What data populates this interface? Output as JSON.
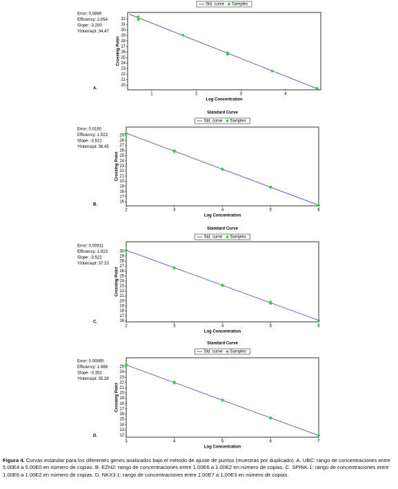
{
  "chart_data": [
    {
      "type": "line",
      "panel_label": "A.",
      "stats": [
        "Error: 0.0889",
        "Efficiency: 2.054",
        "Slope: -3.200",
        "YIntercept: 34.47"
      ],
      "x_label": "Log Concentration",
      "y_label": "Crossing Point",
      "series": [
        {
          "name": "Std. curve",
          "color": "#6060c8",
          "x": [
            0.5,
            4.75
          ],
          "values": [
            32.87,
            19.27
          ]
        },
        {
          "name": "Samples",
          "color": "#33cc33",
          "x": [
            0.699,
            0.699,
            1.699,
            2.699,
            2.699,
            3.699,
            4.699
          ],
          "values": [
            32.4,
            31.9,
            29.1,
            25.9,
            25.6,
            22.6,
            19.5
          ]
        }
      ],
      "xlim": [
        0.46,
        4.79
      ],
      "xticks": [
        1,
        2,
        3,
        4
      ],
      "ylim": [
        19.2,
        33.2
      ],
      "yticks": [
        20,
        21,
        22,
        23,
        24,
        25,
        26,
        27,
        28,
        29,
        30,
        31,
        32
      ]
    },
    {
      "type": "line",
      "title": "Standard Curve",
      "panel_label": "B.",
      "stats": [
        "Error: 0.0160",
        "Efficiency: 1.923",
        "Slope: -3.521",
        "YIntercept: 36.45"
      ],
      "x_label": "Log Concentration",
      "y_label": "Crossing Point",
      "series": [
        {
          "name": "Std. curve",
          "color": "#6060c8",
          "x": [
            2,
            6
          ],
          "values": [
            29.41,
            15.32
          ]
        },
        {
          "name": "Samples",
          "color": "#33cc33",
          "x": [
            2,
            2,
            3,
            3,
            4,
            4,
            5,
            5,
            6,
            6
          ],
          "values": [
            29.4,
            29.3,
            26.0,
            25.8,
            22.4,
            22.3,
            18.9,
            18.8,
            15.3,
            15.3
          ]
        }
      ],
      "xlim": [
        2,
        6
      ],
      "xticks": [
        2,
        3,
        4,
        5,
        6
      ],
      "ylim": [
        15.2,
        30.6
      ],
      "yticks": [
        16,
        17,
        18,
        19,
        20,
        21,
        22,
        23,
        24,
        25,
        26,
        27,
        28,
        29
      ]
    },
    {
      "type": "line",
      "title": "Standard Curve",
      "panel_label": "C.",
      "stats": [
        "Error: 0.00911",
        "Efficiency: 1.923",
        "Slope: -3.522",
        "YIntercept: 37.23"
      ],
      "x_label": "Log Concentration",
      "y_label": "Crossing Point",
      "series": [
        {
          "name": "Std. curve",
          "color": "#6060c8",
          "x": [
            2,
            6
          ],
          "values": [
            30.19,
            16.1
          ]
        },
        {
          "name": "Samples",
          "color": "#33cc33",
          "x": [
            2,
            2,
            3,
            3,
            4,
            4,
            5,
            5,
            6,
            6
          ],
          "values": [
            30.2,
            30.1,
            26.7,
            26.6,
            23.2,
            23.1,
            19.8,
            19.5,
            16.1,
            16.1
          ]
        }
      ],
      "xlim": [
        2,
        6
      ],
      "xticks": [
        2,
        3,
        4,
        5,
        6
      ],
      "ylim": [
        15.8,
        31.9
      ],
      "yticks": [
        16,
        17,
        18,
        19,
        20,
        21,
        22,
        23,
        24,
        25,
        26,
        27,
        28,
        29,
        30
      ]
    },
    {
      "type": "line",
      "title": "Standard Curve",
      "panel_label": "D.",
      "stats": [
        "Error: 0.00865",
        "Efficiency: 1.988",
        "Slope: -3.352",
        "YIntercept: 35.39"
      ],
      "x_label": "Log Concentration",
      "y_label": "Crossing Point",
      "series": [
        {
          "name": "Std. curve",
          "color": "#6060c8",
          "x": [
            3,
            7
          ],
          "values": [
            25.33,
            11.93
          ]
        },
        {
          "name": "Samples",
          "color": "#33cc33",
          "x": [
            3,
            3,
            4,
            4,
            5,
            5,
            6,
            6,
            7,
            7
          ],
          "values": [
            25.4,
            25.2,
            22.1,
            21.9,
            18.7,
            18.6,
            15.3,
            15.2,
            12.0,
            11.9
          ]
        }
      ],
      "xlim": [
        3,
        7
      ],
      "xticks": [
        3,
        4,
        5,
        6,
        7
      ],
      "ylim": [
        11.6,
        26.7
      ],
      "yticks": [
        12,
        13,
        14,
        15,
        16,
        17,
        18,
        19,
        20,
        21,
        22,
        23,
        24,
        25
      ]
    }
  ],
  "caption": {
    "label": "Figura 4.",
    "text": "Curvas estándar para los diferentes genes analizados bajo el método de ajuste de puntos (muestras por duplicado). A. UBC: rango de concentraciones entre 5.00E4 a 5.00E0 en número de copias. B. EZH2: rango de concentraciones entre 1.00E6 a 1.00E2 en número de copias. C. SPINK-1: rango de concentraciones entre 1.00E6 a 1.00E2 en número de copias. D. NKX3.1: rango de concentraciones entre 1.00E7 a 1.00E3 en número de copias."
  }
}
